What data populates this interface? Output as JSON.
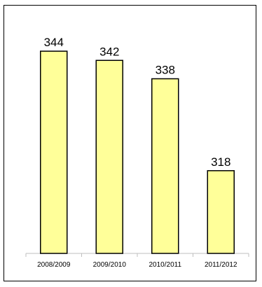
{
  "chart_data": {
    "type": "bar",
    "categories": [
      "2008/2009",
      "2009/2010",
      "2010/2011",
      "2011/2012"
    ],
    "values": [
      344,
      342,
      338,
      318
    ],
    "title": "",
    "xlabel": "",
    "ylabel": "",
    "ylim": [
      300,
      346
    ],
    "grid": false,
    "legend": "none",
    "data_labels": true,
    "bar_color": "#ffff99",
    "bar_outline_color": "#000000"
  }
}
